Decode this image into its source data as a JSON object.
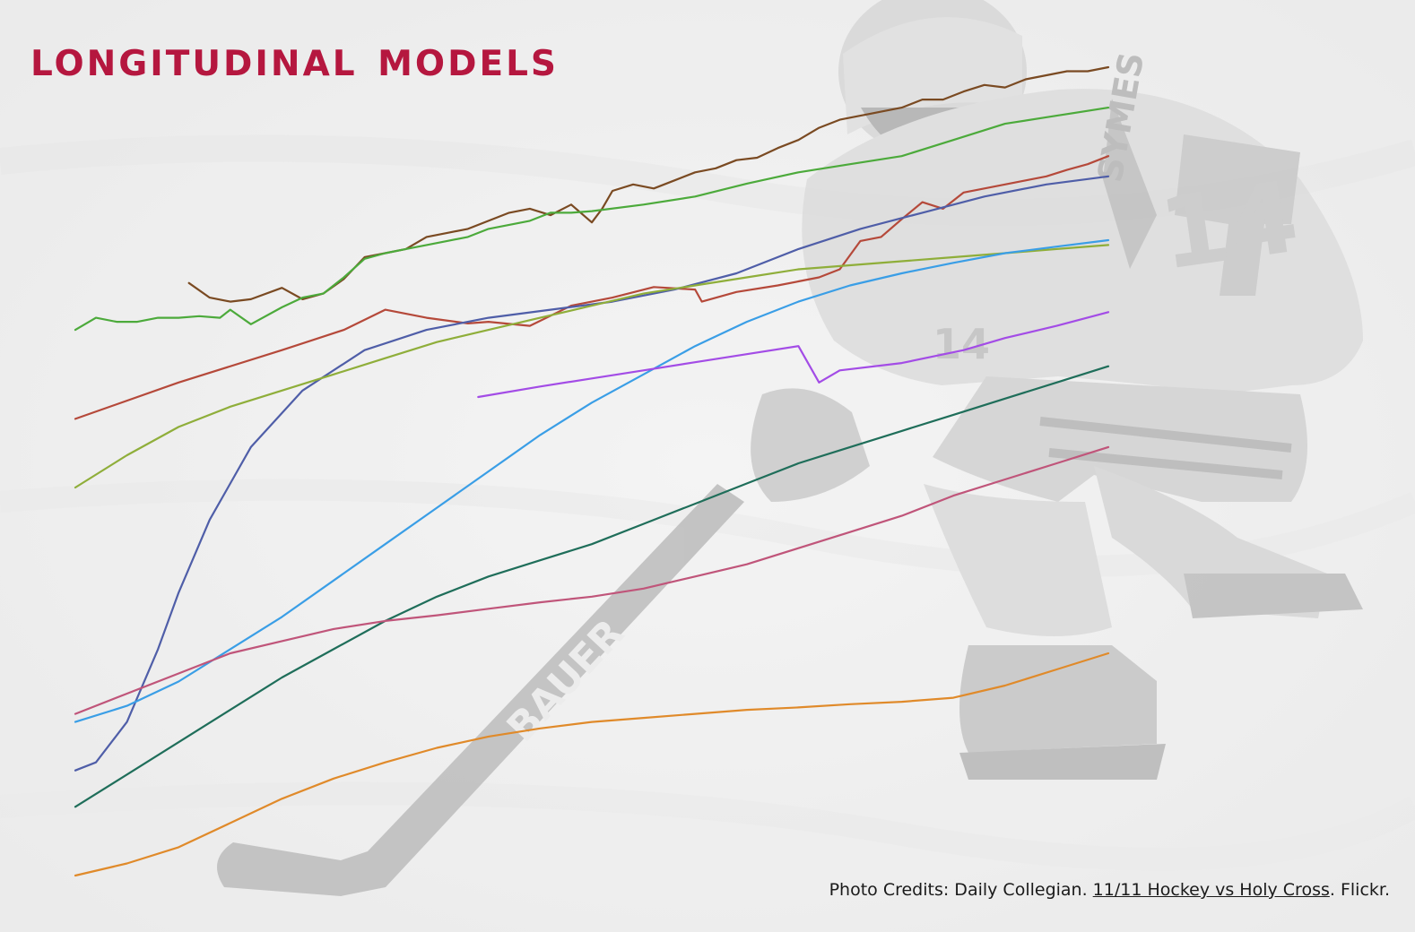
{
  "title": "Longitudinal Models",
  "credits": {
    "prefix": "Photo Credits: Daily Collegian. ",
    "link_text": "11/11 Hockey vs Holy Cross",
    "suffix": ". Flickr."
  },
  "background": {
    "photo_lettering": [
      "BAUER",
      "SYMES",
      "14"
    ]
  },
  "chart_data": {
    "type": "line",
    "title": "Longitudinal Models",
    "xlabel": "",
    "ylabel": "",
    "xlim": [
      0,
      1
    ],
    "ylim": [
      0,
      1
    ],
    "grid": false,
    "legend": "none",
    "series": [
      {
        "color": "#7a4a22",
        "x": [
          0.11,
          0.13,
          0.15,
          0.17,
          0.2,
          0.22,
          0.24,
          0.26,
          0.28,
          0.3,
          0.32,
          0.34,
          0.36,
          0.38,
          0.4,
          0.42,
          0.44,
          0.46,
          0.48,
          0.5,
          0.51,
          0.52,
          0.54,
          0.56,
          0.58,
          0.6,
          0.62,
          0.64,
          0.66,
          0.68,
          0.7,
          0.72,
          0.74,
          0.76,
          0.78,
          0.8,
          0.82,
          0.84,
          0.86,
          0.88,
          0.9,
          0.92,
          0.94,
          0.96,
          0.98,
          1.0
        ],
        "y": [
          0.733,
          0.715,
          0.71,
          0.713,
          0.727,
          0.713,
          0.72,
          0.738,
          0.765,
          0.77,
          0.775,
          0.79,
          0.795,
          0.8,
          0.81,
          0.82,
          0.825,
          0.817,
          0.83,
          0.808,
          0.825,
          0.847,
          0.855,
          0.85,
          0.86,
          0.87,
          0.875,
          0.885,
          0.888,
          0.9,
          0.91,
          0.925,
          0.935,
          0.94,
          0.945,
          0.95,
          0.96,
          0.96,
          0.97,
          0.978,
          0.975,
          0.985,
          0.99,
          0.995,
          0.995,
          1.0
        ]
      },
      {
        "color": "#4caa3b",
        "x": [
          0.0,
          0.02,
          0.04,
          0.06,
          0.08,
          0.1,
          0.12,
          0.14,
          0.15,
          0.17,
          0.2,
          0.22,
          0.24,
          0.26,
          0.28,
          0.3,
          0.32,
          0.34,
          0.36,
          0.38,
          0.4,
          0.42,
          0.44,
          0.46,
          0.48,
          0.5,
          0.55,
          0.6,
          0.65,
          0.7,
          0.75,
          0.8,
          0.85,
          0.9,
          0.95,
          1.0
        ],
        "y": [
          0.675,
          0.69,
          0.685,
          0.685,
          0.69,
          0.69,
          0.692,
          0.69,
          0.7,
          0.682,
          0.703,
          0.715,
          0.72,
          0.74,
          0.763,
          0.77,
          0.775,
          0.78,
          0.785,
          0.79,
          0.8,
          0.805,
          0.81,
          0.82,
          0.82,
          0.822,
          0.83,
          0.84,
          0.856,
          0.87,
          0.88,
          0.89,
          0.91,
          0.93,
          0.94,
          0.95
        ]
      },
      {
        "color": "#b5493a",
        "x": [
          0.0,
          0.1,
          0.2,
          0.26,
          0.3,
          0.34,
          0.38,
          0.4,
          0.44,
          0.48,
          0.52,
          0.56,
          0.6,
          0.6065,
          0.64,
          0.68,
          0.7,
          0.72,
          0.74,
          0.76,
          0.78,
          0.8,
          0.82,
          0.84,
          0.86,
          0.88,
          0.9,
          0.92,
          0.94,
          0.96,
          0.98,
          1.0
        ],
        "y": [
          0.565,
          0.61,
          0.65,
          0.675,
          0.7,
          0.69,
          0.683,
          0.685,
          0.68,
          0.705,
          0.715,
          0.728,
          0.725,
          0.71,
          0.722,
          0.73,
          0.735,
          0.74,
          0.75,
          0.785,
          0.79,
          0.812,
          0.833,
          0.825,
          0.845,
          0.85,
          0.855,
          0.86,
          0.865,
          0.873,
          0.88,
          0.89
        ]
      },
      {
        "color": "#4f5ea8",
        "x": [
          0.0,
          0.02,
          0.05,
          0.08,
          0.1,
          0.13,
          0.17,
          0.22,
          0.28,
          0.34,
          0.4,
          0.46,
          0.52,
          0.58,
          0.64,
          0.7,
          0.76,
          0.82,
          0.88,
          0.94,
          1.0
        ],
        "y": [
          0.13,
          0.14,
          0.19,
          0.28,
          0.35,
          0.44,
          0.53,
          0.6,
          0.65,
          0.675,
          0.69,
          0.7,
          0.71,
          0.725,
          0.745,
          0.775,
          0.8,
          0.82,
          0.84,
          0.855,
          0.865
        ]
      },
      {
        "color": "#8fae3a",
        "x": [
          0.0,
          0.05,
          0.1,
          0.15,
          0.2,
          0.25,
          0.3,
          0.35,
          0.4,
          0.45,
          0.5,
          0.55,
          0.6,
          0.65,
          0.7,
          0.75,
          0.8,
          0.85,
          0.9,
          0.95,
          1.0
        ],
        "y": [
          0.48,
          0.52,
          0.555,
          0.58,
          0.6,
          0.62,
          0.64,
          0.66,
          0.675,
          0.69,
          0.705,
          0.72,
          0.73,
          0.74,
          0.75,
          0.755,
          0.76,
          0.765,
          0.77,
          0.775,
          0.78
        ]
      },
      {
        "color": "#3a9ee6",
        "x": [
          0.0,
          0.05,
          0.1,
          0.15,
          0.2,
          0.25,
          0.3,
          0.35,
          0.4,
          0.45,
          0.5,
          0.55,
          0.6,
          0.65,
          0.7,
          0.75,
          0.8,
          0.85,
          0.9,
          0.95,
          1.0
        ],
        "y": [
          0.19,
          0.21,
          0.24,
          0.28,
          0.32,
          0.365,
          0.41,
          0.455,
          0.5,
          0.545,
          0.585,
          0.62,
          0.655,
          0.685,
          0.71,
          0.73,
          0.745,
          0.758,
          0.77,
          0.778,
          0.786
        ]
      },
      {
        "color": "#a34ce6",
        "x": [
          0.39,
          0.45,
          0.5,
          0.55,
          0.6,
          0.65,
          0.7,
          0.7,
          0.72,
          0.74,
          0.8,
          0.86,
          0.9,
          0.95,
          1.0
        ],
        "y": [
          0.592,
          0.605,
          0.615,
          0.625,
          0.635,
          0.645,
          0.655,
          0.655,
          0.61,
          0.625,
          0.634,
          0.65,
          0.665,
          0.68,
          0.697
        ]
      },
      {
        "color": "#1f6e5a",
        "x": [
          0.0,
          0.05,
          0.1,
          0.15,
          0.2,
          0.25,
          0.3,
          0.35,
          0.4,
          0.45,
          0.5,
          0.55,
          0.6,
          0.65,
          0.7,
          0.75,
          0.8,
          0.85,
          0.9,
          0.95,
          1.0
        ],
        "y": [
          0.085,
          0.125,
          0.165,
          0.205,
          0.245,
          0.28,
          0.315,
          0.345,
          0.37,
          0.39,
          0.41,
          0.435,
          0.46,
          0.485,
          0.51,
          0.53,
          0.55,
          0.57,
          0.59,
          0.61,
          0.63
        ]
      },
      {
        "color": "#c0557a",
        "x": [
          0.0,
          0.05,
          0.1,
          0.15,
          0.2,
          0.25,
          0.3,
          0.35,
          0.4,
          0.45,
          0.5,
          0.55,
          0.6,
          0.65,
          0.7,
          0.75,
          0.8,
          0.85,
          0.9,
          0.95,
          1.0
        ],
        "y": [
          0.2,
          0.225,
          0.25,
          0.275,
          0.29,
          0.305,
          0.315,
          0.322,
          0.33,
          0.338,
          0.345,
          0.355,
          0.37,
          0.385,
          0.405,
          0.425,
          0.445,
          0.47,
          0.49,
          0.51,
          0.53
        ]
      },
      {
        "color": "#e08a2a",
        "x": [
          0.0,
          0.05,
          0.1,
          0.15,
          0.2,
          0.25,
          0.3,
          0.35,
          0.4,
          0.45,
          0.5,
          0.55,
          0.6,
          0.65,
          0.7,
          0.75,
          0.8,
          0.85,
          0.9,
          0.95,
          1.0
        ],
        "y": [
          0.0,
          0.015,
          0.035,
          0.065,
          0.095,
          0.12,
          0.14,
          0.158,
          0.172,
          0.182,
          0.19,
          0.195,
          0.2,
          0.205,
          0.208,
          0.212,
          0.215,
          0.22,
          0.235,
          0.255,
          0.275
        ]
      }
    ]
  }
}
